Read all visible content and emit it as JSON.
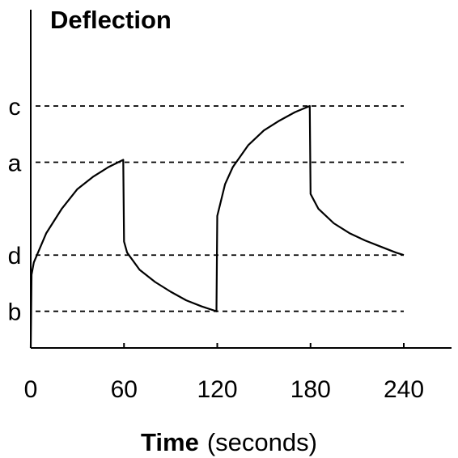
{
  "chart_data": {
    "type": "line",
    "ylabel": "Deflection",
    "xlabel": "Time",
    "xlabel_unit": "(seconds)",
    "x_ticks": [
      0,
      60,
      120,
      180,
      240
    ],
    "xlim": [
      0,
      270
    ],
    "y_axis_numeric_labels": false,
    "levels": [
      {
        "name": "c",
        "value": 0.99
      },
      {
        "name": "a",
        "value": 0.76
      },
      {
        "name": "d",
        "value": 0.38
      },
      {
        "name": "b",
        "value": 0.15
      }
    ],
    "reference_lines_end_x": 240,
    "series": [
      {
        "values": [
          {
            "x": 0,
            "y": 0.0
          },
          {
            "x": 0.5,
            "y": 0.3
          },
          {
            "x": 2,
            "y": 0.35
          },
          {
            "x": 10,
            "y": 0.47
          },
          {
            "x": 20,
            "y": 0.57
          },
          {
            "x": 30,
            "y": 0.65
          },
          {
            "x": 40,
            "y": 0.7
          },
          {
            "x": 50,
            "y": 0.74
          },
          {
            "x": 59.5,
            "y": 0.77
          },
          {
            "x": 60,
            "y": 0.435
          },
          {
            "x": 62,
            "y": 0.39
          },
          {
            "x": 70,
            "y": 0.32
          },
          {
            "x": 80,
            "y": 0.27
          },
          {
            "x": 90,
            "y": 0.23
          },
          {
            "x": 100,
            "y": 0.195
          },
          {
            "x": 110,
            "y": 0.17
          },
          {
            "x": 119.5,
            "y": 0.15
          },
          {
            "x": 120,
            "y": 0.54
          },
          {
            "x": 125,
            "y": 0.67
          },
          {
            "x": 130,
            "y": 0.74
          },
          {
            "x": 140,
            "y": 0.83
          },
          {
            "x": 150,
            "y": 0.89
          },
          {
            "x": 160,
            "y": 0.93
          },
          {
            "x": 170,
            "y": 0.965
          },
          {
            "x": 179.5,
            "y": 0.99
          },
          {
            "x": 180,
            "y": 0.63
          },
          {
            "x": 185,
            "y": 0.57
          },
          {
            "x": 195,
            "y": 0.51
          },
          {
            "x": 205,
            "y": 0.47
          },
          {
            "x": 215,
            "y": 0.44
          },
          {
            "x": 225,
            "y": 0.415
          },
          {
            "x": 235,
            "y": 0.39
          },
          {
            "x": 240,
            "y": 0.38
          }
        ]
      }
    ]
  }
}
